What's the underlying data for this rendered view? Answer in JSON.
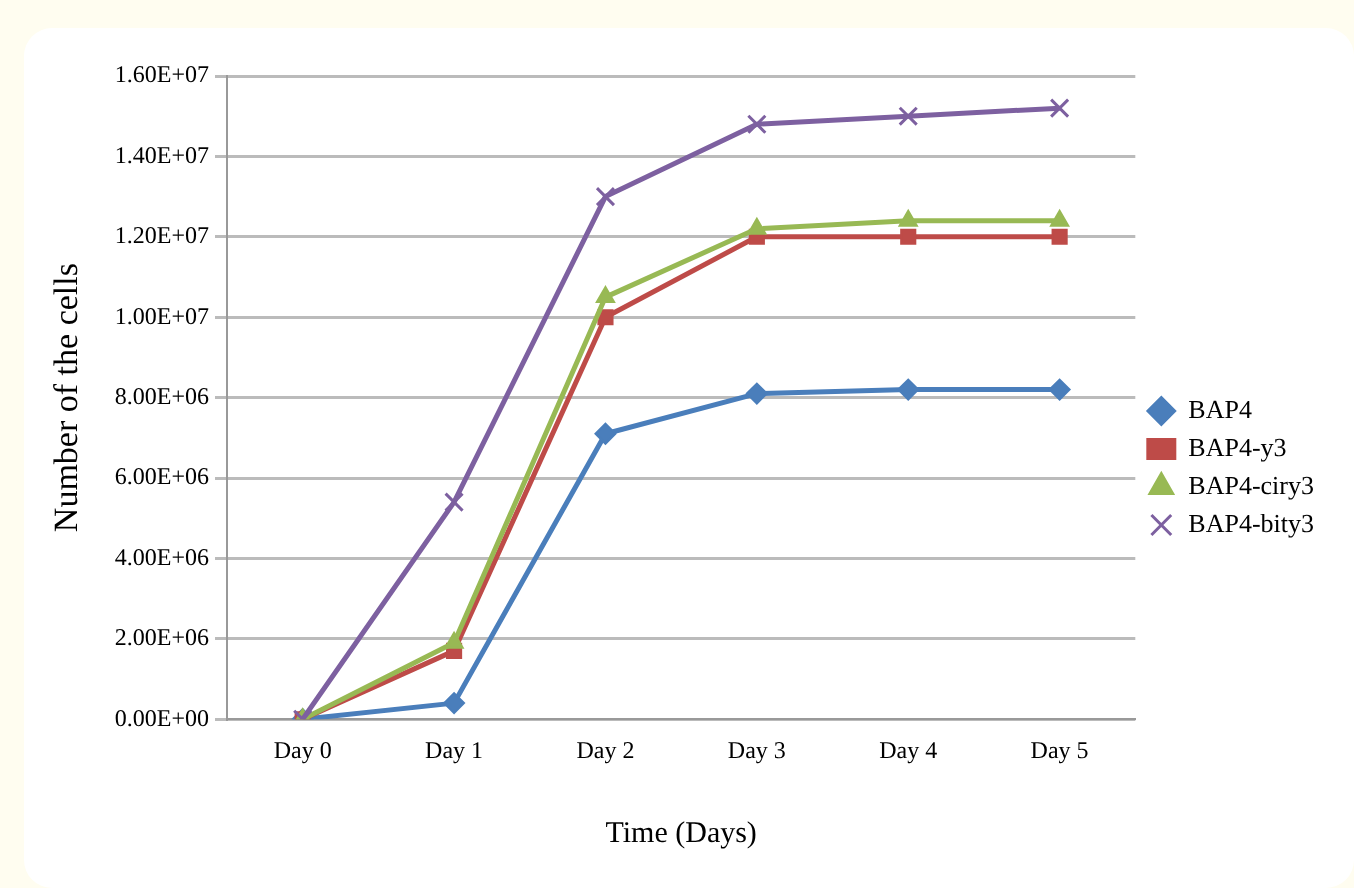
{
  "chart_data": {
    "type": "line",
    "xlabel": "Time (Days)",
    "ylabel": "Number of the cells",
    "categories": [
      "Day 0",
      "Day 1",
      "Day 2",
      "Day 3",
      "Day 4",
      "Day 5"
    ],
    "series": [
      {
        "name": "BAP4",
        "color": "#4a7ebb",
        "marker": "diamond",
        "values": [
          0,
          400000,
          7100000,
          8100000,
          8200000,
          8200000
        ]
      },
      {
        "name": "BAP4-y3",
        "color": "#be4b48",
        "marker": "square",
        "values": [
          0,
          1700000,
          10000000,
          12000000,
          12000000,
          12000000
        ]
      },
      {
        "name": "BAP4-ciry3",
        "color": "#98b954",
        "marker": "triangle",
        "values": [
          0,
          1900000,
          10500000,
          12200000,
          12400000,
          12400000
        ]
      },
      {
        "name": "BAP4-bity3",
        "color": "#7d60a0",
        "marker": "cross",
        "values": [
          0,
          5400000,
          13000000,
          14800000,
          15000000,
          15200000
        ]
      }
    ],
    "ylim": [
      0,
      16000000
    ],
    "yticks": [
      {
        "value": 0,
        "label": "0.00E+00"
      },
      {
        "value": 2000000,
        "label": "2.00E+06"
      },
      {
        "value": 4000000,
        "label": "4.00E+06"
      },
      {
        "value": 6000000,
        "label": "6.00E+06"
      },
      {
        "value": 8000000,
        "label": "8.00E+06"
      },
      {
        "value": 10000000,
        "label": "1.00E+07"
      },
      {
        "value": 12000000,
        "label": "1.20E+07"
      },
      {
        "value": 14000000,
        "label": "1.40E+07"
      },
      {
        "value": 16000000,
        "label": "1.60E+07"
      }
    ],
    "grid": "y",
    "legend": "right",
    "line_style": "solid"
  }
}
